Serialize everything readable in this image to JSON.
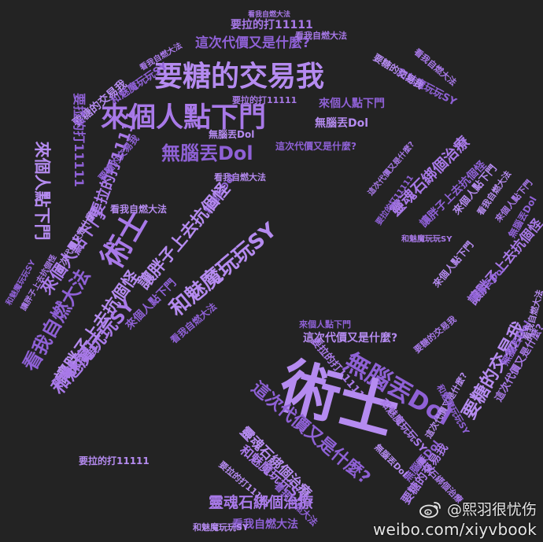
{
  "phrases": {
    "trade": "要糖的交易我",
    "come": "來個人點下門",
    "dol": "無腦丟Dol",
    "cost": "這次代價又是什麼?",
    "pull": "要拉的打11111",
    "see": "看我自燃大法",
    "pile": "和魅魔玩玩SY",
    "soul": "靈魂石綁個治療",
    "fat": "讓胖子上去抗個怪",
    "warlock": "術士"
  },
  "watermark": {
    "handle": "@熙羽很忧伤",
    "url": "weibo.com/xiyvbook"
  }
}
